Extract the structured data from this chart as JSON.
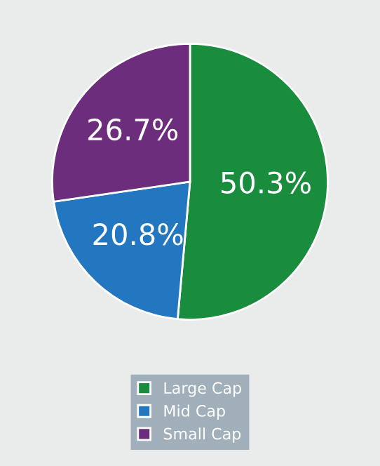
{
  "chart_data": {
    "type": "pie",
    "categories": [
      "Large Cap",
      "Mid Cap",
      "Small Cap"
    ],
    "values": [
      50.3,
      20.8,
      26.7
    ],
    "colors": [
      "#1a8c3e",
      "#2277c0",
      "#6c2d7c"
    ],
    "value_labels": [
      "50.3%",
      "20.8%",
      "26.7%"
    ],
    "legend": "bottom"
  }
}
